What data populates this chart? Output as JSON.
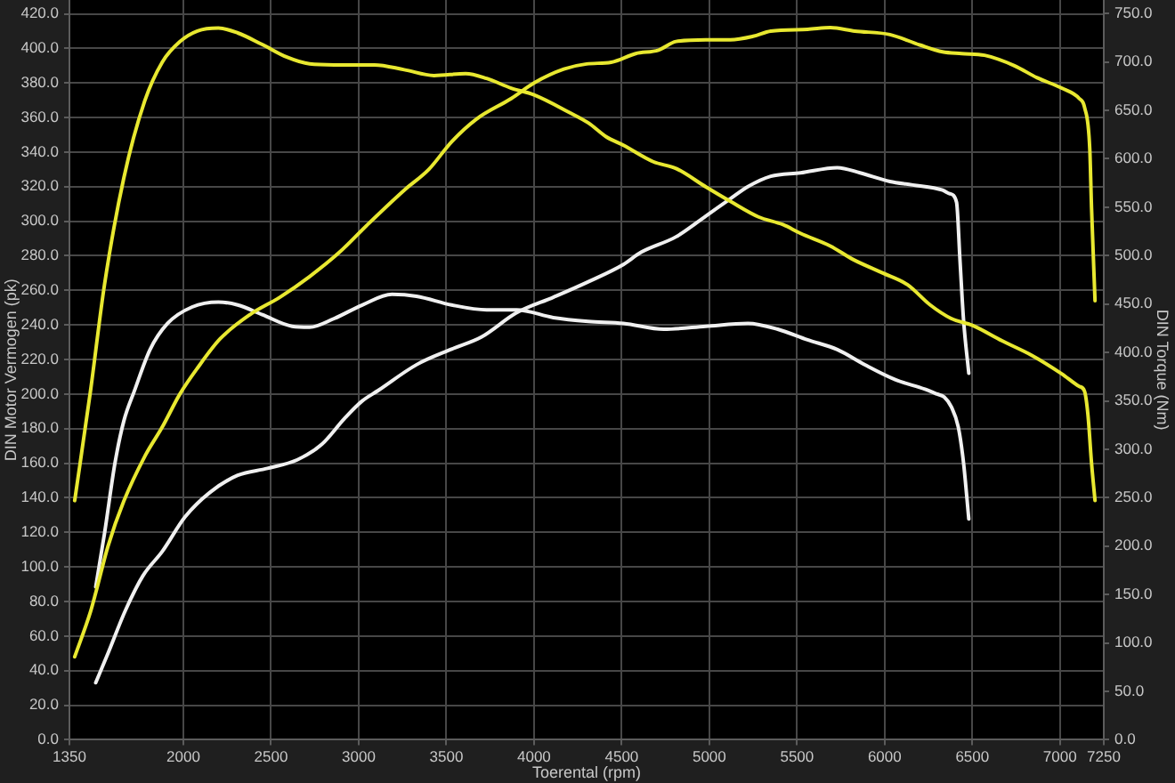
{
  "chart_data": {
    "type": "line",
    "xlabel": "Toerental (rpm)",
    "ylabel": "DIN Motor Vermogen (pk)",
    "y2label": "DIN Torque (Nm)",
    "xlim": [
      1350,
      7250
    ],
    "xticks": [
      1350,
      2000,
      2500,
      3000,
      3500,
      4000,
      4500,
      5000,
      5500,
      6000,
      6500,
      7000,
      7250
    ],
    "ylim": [
      0,
      428
    ],
    "yticks": [
      {
        "value": 0,
        "label": "0.0"
      },
      {
        "value": 20,
        "label": "20.0"
      },
      {
        "value": 40,
        "label": "40.0"
      },
      {
        "value": 60,
        "label": "60.0"
      },
      {
        "value": 80,
        "label": "80.0"
      },
      {
        "value": 100,
        "label": "100.0"
      },
      {
        "value": 120,
        "label": "120.0"
      },
      {
        "value": 140,
        "label": "140.0"
      },
      {
        "value": 160,
        "label": "160.0"
      },
      {
        "value": 180,
        "label": "180.0"
      },
      {
        "value": 200,
        "label": "200.0"
      },
      {
        "value": 220,
        "label": "220.0"
      },
      {
        "value": 240,
        "label": "240.0"
      },
      {
        "value": 260,
        "label": "260.0"
      },
      {
        "value": 280,
        "label": "280.0"
      },
      {
        "value": 300,
        "label": "300.0"
      },
      {
        "value": 320,
        "label": "320.0"
      },
      {
        "value": 340,
        "label": "340.0"
      },
      {
        "value": 360,
        "label": "360.0"
      },
      {
        "value": 380,
        "label": "380.0"
      },
      {
        "value": 400,
        "label": "400.0"
      },
      {
        "value": 420,
        "label": "420.0"
      }
    ],
    "y2lim": [
      0,
      764
    ],
    "y2ticks": [
      {
        "value": 0,
        "label": "0.0"
      },
      {
        "value": 50,
        "label": "50.0"
      },
      {
        "value": 100,
        "label": "100.0"
      },
      {
        "value": 150,
        "label": "150.0"
      },
      {
        "value": 200,
        "label": "200.0"
      },
      {
        "value": 250,
        "label": "250.0"
      },
      {
        "value": 300,
        "label": "300.0"
      },
      {
        "value": 350,
        "label": "350.0"
      },
      {
        "value": 400,
        "label": "400.0"
      },
      {
        "value": 450,
        "label": "450.0"
      },
      {
        "value": 500,
        "label": "500.0"
      },
      {
        "value": 550,
        "label": "550.0"
      },
      {
        "value": 600,
        "label": "600.0"
      },
      {
        "value": 650,
        "label": "650.0"
      },
      {
        "value": 700,
        "label": "700.0"
      },
      {
        "value": 750,
        "label": "750.0"
      }
    ],
    "grid": true,
    "marker": "none",
    "line_style": "solid",
    "series": [
      {
        "color": "#e8e830",
        "axis": "y",
        "x": [
          1380,
          1470,
          1500,
          1570,
          1660,
          1780,
          1880,
          1980,
          2080,
          2210,
          2380,
          2550,
          2720,
          2890,
          3060,
          3260,
          3400,
          3530,
          3670,
          3870,
          4000,
          4170,
          4300,
          4440,
          4580,
          4710,
          4810,
          4980,
          5120,
          5250,
          5350,
          5560,
          5690,
          5830,
          6030,
          6200,
          6330,
          6440,
          6570,
          6740,
          6870,
          7010,
          7110,
          7140,
          7170,
          7180,
          7200
        ],
        "values": [
          48,
          74,
          85,
          112,
          138,
          164,
          181,
          200,
          215,
          232,
          246,
          256,
          268,
          282,
          299,
          318,
          330,
          346,
          359,
          371,
          380,
          388,
          391,
          392,
          397,
          399,
          404,
          405,
          405,
          407,
          410,
          411,
          412,
          410,
          408,
          402,
          398,
          397,
          396,
          390,
          383,
          377,
          371,
          366,
          342,
          308,
          254
        ]
      },
      {
        "color": "#e8e830",
        "axis": "y2",
        "x": [
          1380,
          1470,
          1550,
          1660,
          1780,
          1880,
          1980,
          2080,
          2200,
          2310,
          2450,
          2590,
          2720,
          2860,
          3090,
          3260,
          3430,
          3610,
          3730,
          3870,
          4000,
          4200,
          4310,
          4410,
          4510,
          4680,
          4810,
          4980,
          5120,
          5280,
          5420,
          5520,
          5690,
          5820,
          5990,
          6130,
          6260,
          6380,
          6500,
          6670,
          6840,
          7010,
          7110,
          7140,
          7160,
          7180,
          7200
        ],
        "values": [
          247,
          360,
          470,
          580,
          660,
          700,
          721,
          732,
          735,
          730,
          718,
          705,
          698,
          697,
          697,
          692,
          686,
          688,
          683,
          673,
          666,
          648,
          637,
          623,
          614,
          597,
          590,
          571,
          556,
          540,
          532,
          523,
          510,
          496,
          482,
          470,
          449,
          435,
          428,
          412,
          397,
          378,
          365,
          360,
          335,
          286,
          247
        ]
      },
      {
        "color": "#f0f0f0",
        "axis": "y",
        "x": [
          1500,
          1570,
          1670,
          1770,
          1880,
          2010,
          2150,
          2310,
          2480,
          2650,
          2790,
          2920,
          3020,
          3110,
          3330,
          3530,
          3700,
          3900,
          4110,
          4310,
          4510,
          4610,
          4810,
          4980,
          5120,
          5220,
          5350,
          5520,
          5730,
          5860,
          6030,
          6160,
          6330,
          6370,
          6410,
          6430,
          6450,
          6480
        ],
        "values": [
          33,
          50,
          75,
          95,
          109,
          129,
          143,
          153,
          157,
          162,
          171,
          186,
          196,
          202,
          217,
          226,
          233,
          247,
          256,
          265,
          275,
          282,
          291,
          303,
          313,
          320,
          326,
          328,
          331,
          328,
          323,
          321,
          318,
          316,
          311,
          277,
          243,
          212
        ]
      },
      {
        "color": "#f0f0f0",
        "axis": "y2",
        "x": [
          1500,
          1550,
          1610,
          1660,
          1720,
          1810,
          1910,
          2050,
          2200,
          2310,
          2450,
          2620,
          2720,
          2860,
          3020,
          3190,
          3330,
          3530,
          3730,
          3900,
          4110,
          4310,
          4510,
          4740,
          4980,
          5220,
          5390,
          5560,
          5730,
          5890,
          6060,
          6230,
          6300,
          6340,
          6380,
          6420,
          6450,
          6480
        ],
        "values": [
          158,
          213,
          286,
          329,
          360,
          403,
          430,
          447,
          452,
          449,
          439,
          427,
          426,
          435,
          449,
          460,
          458,
          449,
          444,
          444,
          436,
          432,
          430,
          424,
          427,
          430,
          424,
          413,
          403,
          387,
          372,
          362,
          357,
          354,
          344,
          323,
          286,
          228
        ]
      }
    ]
  }
}
